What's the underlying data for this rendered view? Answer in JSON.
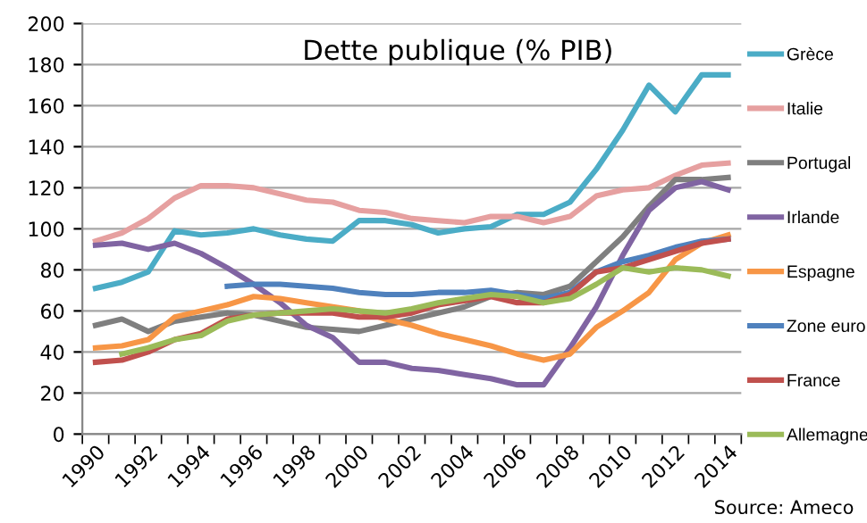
{
  "chart_data": {
    "type": "line",
    "title": "Dette publique (% PIB)",
    "categories": [
      "1990",
      null,
      "1992",
      null,
      "1994",
      null,
      "1996",
      null,
      "1998",
      null,
      "2000",
      null,
      "2002",
      null,
      "2004",
      null,
      "2006",
      null,
      "2008",
      null,
      "2010",
      null,
      "2012",
      null,
      "2014"
    ],
    "series": [
      {
        "name": "Grèce",
        "color": "#4bacc6",
        "values": [
          71,
          74,
          79,
          99,
          97,
          98,
          100,
          97,
          95,
          94,
          104,
          104,
          102,
          98,
          100,
          101,
          107,
          107,
          113,
          129,
          148,
          170,
          157,
          175,
          175
        ]
      },
      {
        "name": "Italie",
        "color": "#e6a0a0",
        "values": [
          94,
          98,
          105,
          115,
          121,
          121,
          120,
          117,
          114,
          113,
          109,
          108,
          105,
          104,
          103,
          106,
          106,
          103,
          106,
          116,
          119,
          120,
          126,
          131,
          132
        ]
      },
      {
        "name": "Portugal",
        "color": "#7f7f7f",
        "values": [
          53,
          56,
          50,
          55,
          57,
          59,
          58,
          55,
          52,
          51,
          50,
          53,
          56,
          59,
          62,
          67,
          69,
          68,
          72,
          84,
          96,
          111,
          124,
          124,
          125
        ]
      },
      {
        "name": "Irlande",
        "color": "#8064a2",
        "values": [
          92,
          93,
          90,
          93,
          88,
          81,
          73,
          64,
          53,
          47,
          35,
          35,
          32,
          31,
          29,
          27,
          24,
          24,
          42,
          62,
          87,
          109,
          120,
          123,
          119
        ]
      },
      {
        "name": "Espagne",
        "color": "#f79646",
        "values": [
          42,
          43,
          46,
          57,
          60,
          63,
          67,
          66,
          64,
          62,
          60,
          56,
          53,
          49,
          46,
          43,
          39,
          36,
          39,
          52,
          60,
          69,
          85,
          93,
          97
        ]
      },
      {
        "name": "Zone euro",
        "color": "#4f81bd",
        "values": [
          null,
          null,
          null,
          null,
          null,
          72,
          73,
          73,
          72,
          71,
          69,
          68,
          68,
          69,
          69,
          70,
          68,
          66,
          69,
          79,
          84,
          87,
          91,
          94,
          95
        ]
      },
      {
        "name": "France",
        "color": "#c0504d",
        "values": [
          35,
          36,
          40,
          46,
          49,
          56,
          58,
          59,
          59,
          59,
          57,
          57,
          59,
          63,
          65,
          67,
          64,
          64,
          68,
          79,
          81,
          85,
          89,
          93,
          95
        ]
      },
      {
        "name": "Allemagne",
        "color": "#9bbb59",
        "values": [
          null,
          39,
          42,
          46,
          48,
          55,
          58,
          59,
          60,
          61,
          60,
          59,
          61,
          64,
          66,
          68,
          67,
          64,
          66,
          73,
          81,
          79,
          81,
          80,
          77
        ]
      }
    ],
    "ylim": [
      0,
      200
    ],
    "yticks": [
      0,
      20,
      40,
      60,
      80,
      100,
      120,
      140,
      160,
      180,
      200
    ],
    "grid": "y",
    "legend": "right",
    "marker": "none",
    "line_style": "solid",
    "annotations": [
      "Source: Ameco"
    ]
  }
}
